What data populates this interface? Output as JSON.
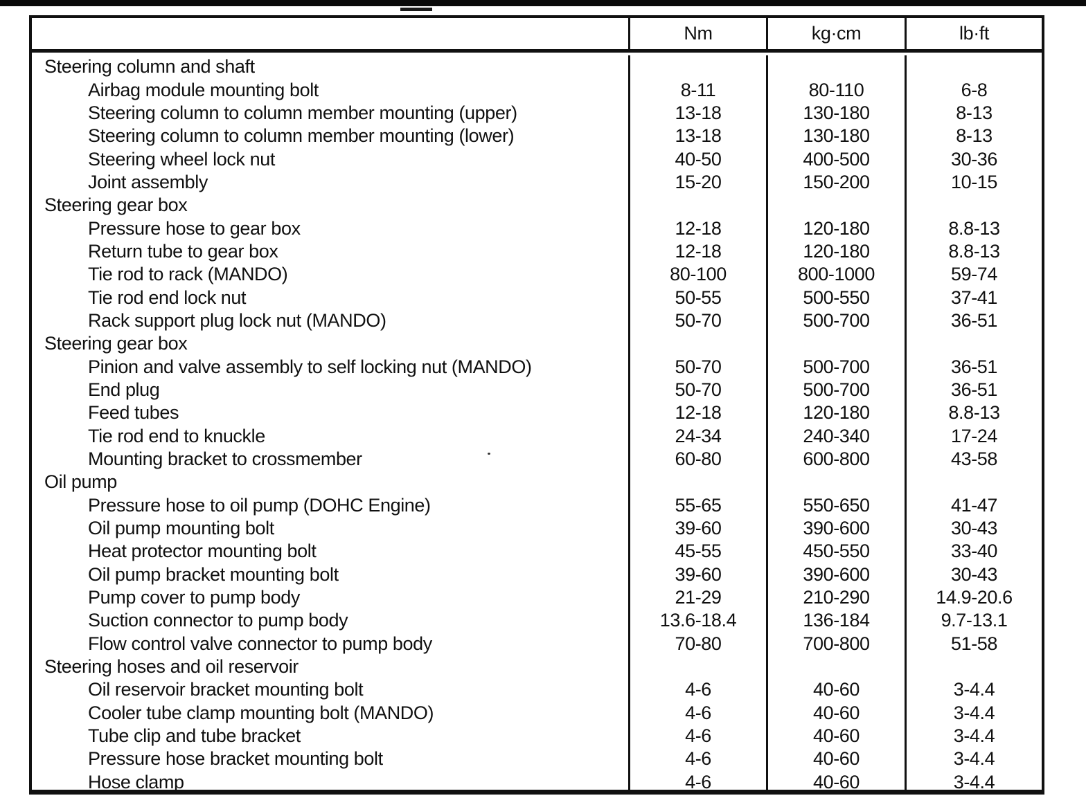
{
  "table": {
    "columns": [
      "",
      "Nm",
      "kg·cm",
      "lb·ft"
    ],
    "rows": [
      {
        "type": "section",
        "label": "Steering column and shaft",
        "values": [
          "",
          "",
          ""
        ]
      },
      {
        "type": "item",
        "label": "Airbag module mounting bolt",
        "values": [
          "8-11",
          "80-110",
          "6-8"
        ]
      },
      {
        "type": "item",
        "label": "Steering column to column member mounting (upper)",
        "values": [
          "13-18",
          "130-180",
          "8-13"
        ]
      },
      {
        "type": "item",
        "label": "Steering column to column member mounting (lower)",
        "values": [
          "13-18",
          "130-180",
          "8-13"
        ]
      },
      {
        "type": "item",
        "label": "Steering wheel lock nut",
        "values": [
          "40-50",
          "400-500",
          "30-36"
        ]
      },
      {
        "type": "item",
        "label": "Joint assembly",
        "values": [
          "15-20",
          "150-200",
          "10-15"
        ]
      },
      {
        "type": "section",
        "label": "Steering gear box",
        "values": [
          "",
          "",
          ""
        ]
      },
      {
        "type": "item",
        "label": "Pressure hose to gear box",
        "values": [
          "12-18",
          "120-180",
          "8.8-13"
        ]
      },
      {
        "type": "item",
        "label": "Return tube to gear box",
        "values": [
          "12-18",
          "120-180",
          "8.8-13"
        ]
      },
      {
        "type": "item",
        "label": "Tie rod to rack (MANDO)",
        "values": [
          "80-100",
          "800-1000",
          "59-74"
        ]
      },
      {
        "type": "item",
        "label": "Tie rod end lock nut",
        "values": [
          "50-55",
          "500-550",
          "37-41"
        ]
      },
      {
        "type": "item",
        "label": "Rack support plug lock nut (MANDO)",
        "values": [
          "50-70",
          "500-700",
          "36-51"
        ]
      },
      {
        "type": "section",
        "label": "Steering gear box",
        "values": [
          "",
          "",
          ""
        ]
      },
      {
        "type": "item",
        "label": "Pinion and valve assembly to self locking nut (MANDO)",
        "values": [
          "50-70",
          "500-700",
          "36-51"
        ]
      },
      {
        "type": "item",
        "label": "End plug",
        "values": [
          "50-70",
          "500-700",
          "36-51"
        ]
      },
      {
        "type": "item",
        "label": "Feed tubes",
        "values": [
          "12-18",
          "120-180",
          "8.8-13"
        ]
      },
      {
        "type": "item",
        "label": "Tie rod end to knuckle",
        "values": [
          "24-34",
          "240-340",
          "17-24"
        ]
      },
      {
        "type": "item",
        "label": "Mounting bracket to crossmember",
        "values": [
          "60-80",
          "600-800",
          "43-58"
        ]
      },
      {
        "type": "section",
        "label": "Oil pump",
        "values": [
          "",
          "",
          ""
        ]
      },
      {
        "type": "item",
        "label": "Pressure hose to oil pump (DOHC Engine)",
        "values": [
          "55-65",
          "550-650",
          "41-47"
        ]
      },
      {
        "type": "item",
        "label": "Oil pump mounting bolt",
        "values": [
          "39-60",
          "390-600",
          "30-43"
        ]
      },
      {
        "type": "item",
        "label": "Heat protector mounting bolt",
        "values": [
          "45-55",
          "450-550",
          "33-40"
        ]
      },
      {
        "type": "item",
        "label": "Oil pump bracket mounting bolt",
        "values": [
          "39-60",
          "390-600",
          "30-43"
        ]
      },
      {
        "type": "item",
        "label": "Pump cover to pump body",
        "values": [
          "21-29",
          "210-290",
          "14.9-20.6"
        ]
      },
      {
        "type": "item",
        "label": "Suction connector to pump body",
        "values": [
          "13.6-18.4",
          "136-184",
          "9.7-13.1"
        ]
      },
      {
        "type": "item",
        "label": "Flow control valve connector to pump body",
        "values": [
          "70-80",
          "700-800",
          "51-58"
        ]
      },
      {
        "type": "section",
        "label": "Steering hoses and oil reservoir",
        "values": [
          "",
          "",
          ""
        ]
      },
      {
        "type": "item",
        "label": "Oil reservoir bracket mounting bolt",
        "values": [
          "4-6",
          "40-60",
          "3-4.4"
        ]
      },
      {
        "type": "item",
        "label": "Cooler tube clamp mounting bolt (MANDO)",
        "values": [
          "4-6",
          "40-60",
          "3-4.4"
        ]
      },
      {
        "type": "item",
        "label": "Tube clip and tube bracket",
        "values": [
          "4-6",
          "40-60",
          "3-4.4"
        ]
      },
      {
        "type": "item",
        "label": "Pressure hose bracket mounting bolt",
        "values": [
          "4-6",
          "40-60",
          "3-4.4"
        ]
      },
      {
        "type": "item",
        "label": "Hose clamp",
        "values": [
          "4-6",
          "40-60",
          "3-4.4"
        ]
      }
    ]
  }
}
